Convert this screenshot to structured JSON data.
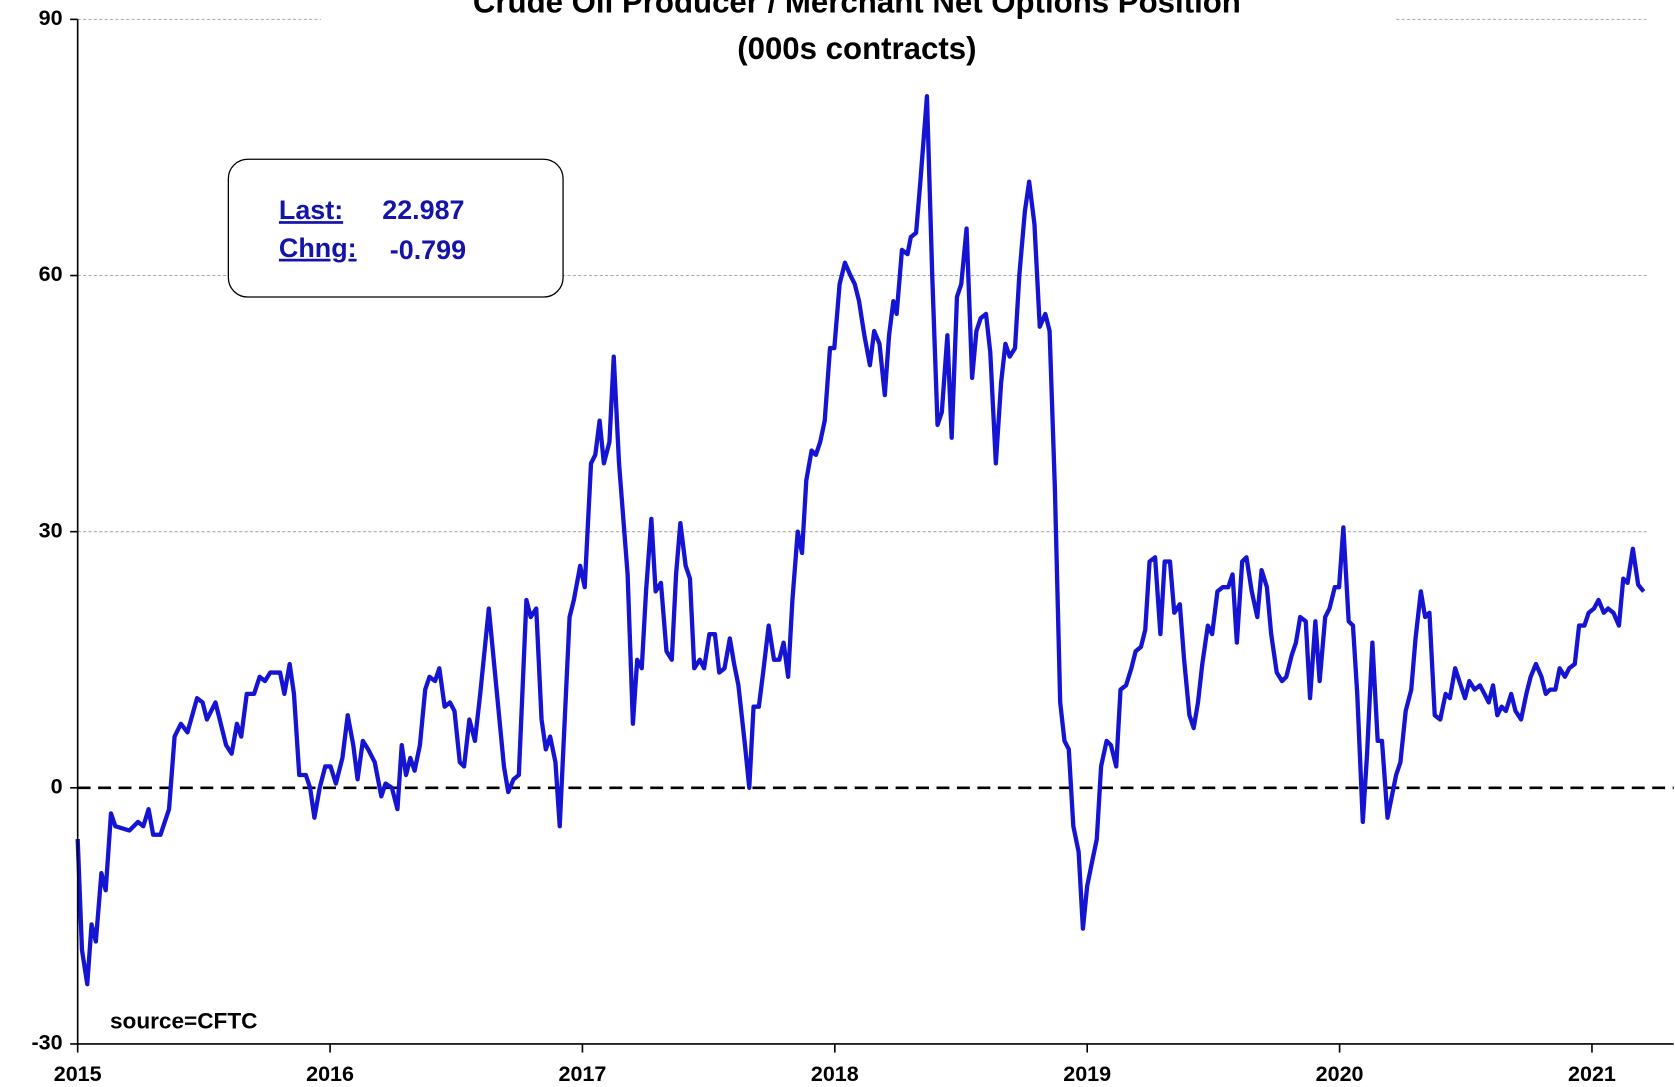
{
  "chart_data": {
    "type": "line",
    "title": "Crude Oil Producer / Merchant Net Options Position",
    "subtitle": "(000s contracts)",
    "annotations": {
      "last_label": "Last:",
      "last_value": "22.987",
      "change_label": "Chng:",
      "change_value": "-0.799",
      "source": "source=CFTC"
    },
    "xlim": [
      2015,
      2021.324
    ],
    "xticks": [
      2015,
      2016,
      2017,
      2018,
      2019,
      2020,
      2021
    ],
    "ylim": [
      -30,
      90
    ],
    "yticks": [
      -30,
      0,
      30,
      60,
      90
    ],
    "grid": true,
    "zero_line": true,
    "x": [
      2015.0,
      2015.017,
      2015.038,
      2015.055,
      2015.072,
      2015.094,
      2015.111,
      2015.132,
      2015.149,
      2015.205,
      2015.239,
      2015.26,
      2015.281,
      2015.299,
      2015.328,
      2015.362,
      2015.384,
      2015.409,
      2015.435,
      2015.473,
      2015.495,
      2015.512,
      2015.546,
      2015.588,
      2015.61,
      2015.631,
      2015.648,
      2015.67,
      2015.699,
      2015.721,
      2015.742,
      2015.763,
      2015.802,
      2015.819,
      2015.84,
      2015.857,
      2015.878,
      2015.904,
      2015.921,
      2015.938,
      2015.959,
      2015.981,
      2016.002,
      2016.023,
      2016.049,
      2016.07,
      2016.092,
      2016.109,
      2016.13,
      2016.151,
      2016.177,
      2016.203,
      2016.22,
      2016.245,
      2016.267,
      2016.284,
      2016.301,
      2016.318,
      2016.335,
      2016.356,
      2016.377,
      2016.394,
      2016.416,
      2016.433,
      2016.454,
      2016.475,
      2016.493,
      2016.514,
      2016.531,
      2016.552,
      2016.574,
      2016.595,
      2016.629,
      2016.663,
      2016.689,
      2016.706,
      2016.727,
      2016.748,
      2016.778,
      2016.795,
      2016.817,
      2016.838,
      2016.855,
      2016.872,
      2016.893,
      2016.91,
      2016.949,
      2016.966,
      2016.991,
      2017.009,
      2017.034,
      2017.051,
      2017.068,
      2017.085,
      2017.107,
      2017.124,
      2017.145,
      2017.179,
      2017.2,
      2017.217,
      2017.235,
      2017.252,
      2017.273,
      2017.29,
      2017.311,
      2017.333,
      2017.354,
      2017.371,
      2017.388,
      2017.409,
      2017.426,
      2017.443,
      2017.465,
      2017.482,
      2017.503,
      2017.525,
      2017.542,
      2017.563,
      2017.584,
      2017.601,
      2017.618,
      2017.644,
      2017.661,
      2017.678,
      2017.699,
      2017.716,
      2017.738,
      2017.759,
      2017.78,
      2017.797,
      2017.815,
      2017.832,
      2017.853,
      2017.87,
      2017.887,
      2017.908,
      2017.925,
      2017.942,
      2017.96,
      2017.981,
      2017.998,
      2018.019,
      2018.04,
      2018.062,
      2018.079,
      2018.096,
      2018.117,
      2018.139,
      2018.156,
      2018.177,
      2018.198,
      2018.215,
      2018.232,
      2018.245,
      2018.266,
      2018.288,
      2018.301,
      2018.322,
      2018.339,
      2018.365,
      2018.386,
      2018.407,
      2018.424,
      2018.446,
      2018.463,
      2018.484,
      2018.501,
      2018.522,
      2018.544,
      2018.561,
      2018.578,
      2018.599,
      2018.616,
      2018.638,
      2018.659,
      2018.676,
      2018.693,
      2018.714,
      2018.731,
      2018.753,
      2018.77,
      2018.791,
      2018.812,
      2018.834,
      2018.851,
      2018.872,
      2018.893,
      2018.91,
      2018.927,
      2018.945,
      2018.966,
      2018.983,
      2019.0,
      2019.017,
      2019.038,
      2019.055,
      2019.077,
      2019.094,
      2019.115,
      2019.132,
      2019.154,
      2019.175,
      2019.192,
      2019.213,
      2019.23,
      2019.247,
      2019.269,
      2019.29,
      2019.307,
      2019.328,
      2019.345,
      2019.367,
      2019.384,
      2019.405,
      2019.422,
      2019.439,
      2019.456,
      2019.478,
      2019.495,
      2019.516,
      2019.537,
      2019.559,
      2019.576,
      2019.593,
      2019.614,
      2019.631,
      2019.652,
      2019.674,
      2019.691,
      2019.712,
      2019.729,
      2019.751,
      2019.772,
      2019.789,
      2019.81,
      2019.827,
      2019.844,
      2019.866,
      2019.883,
      2019.904,
      2019.921,
      2019.943,
      2019.96,
      2019.981,
      2019.998,
      2020.015,
      2020.036,
      2020.053,
      2020.07,
      2020.092,
      2020.109,
      2020.13,
      2020.151,
      2020.168,
      2020.19,
      2020.207,
      2020.224,
      2020.241,
      2020.262,
      2020.284,
      2020.301,
      2020.322,
      2020.339,
      2020.356,
      2020.377,
      2020.399,
      2020.42,
      2020.437,
      2020.458,
      2020.48,
      2020.497,
      2020.514,
      2020.535,
      2020.556,
      2020.574,
      2020.591,
      2020.608,
      2020.625,
      2020.642,
      2020.659,
      2020.68,
      2020.697,
      2020.719,
      2020.74,
      2020.757,
      2020.778,
      2020.8,
      2020.817,
      2020.834,
      2020.855,
      2020.872,
      2020.893,
      2020.91,
      2020.932,
      2020.949,
      2020.97,
      2020.987,
      2021.008,
      2021.026,
      2021.047,
      2021.064,
      2021.085,
      2021.107,
      2021.124,
      2021.141,
      2021.162,
      2021.183,
      2021.205
    ],
    "series": [
      {
        "name": "Net Options Position",
        "color": "#1414d2",
        "values": [
          -6,
          -19,
          -23,
          -16,
          -18,
          -10,
          -12,
          -3,
          -4.5,
          -5,
          -4,
          -4.5,
          -2.5,
          -5.5,
          -5.5,
          -2.5,
          6,
          7.5,
          6.5,
          10.5,
          10,
          8,
          10,
          5,
          4,
          7.5,
          6,
          11,
          11,
          13,
          12.5,
          13.5,
          13.5,
          11,
          14.5,
          11,
          1.5,
          1.5,
          0,
          -3.5,
          0,
          2.5,
          2.5,
          0.5,
          3.5,
          8.5,
          5,
          1,
          5.5,
          4.5,
          3,
          -1,
          0.5,
          0,
          -2.5,
          5,
          1.5,
          3.5,
          2,
          5,
          11.5,
          13,
          12.5,
          14,
          9.5,
          10,
          9,
          3,
          2.5,
          8,
          5.5,
          11,
          21,
          10.5,
          2.5,
          -0.5,
          1,
          1.5,
          22,
          20,
          21,
          8,
          4.5,
          6,
          3,
          -4.5,
          20,
          22,
          26,
          23.5,
          38,
          39,
          43,
          38,
          40.5,
          50.5,
          38,
          25,
          7.5,
          15,
          14,
          23,
          31.5,
          23,
          24,
          16,
          15,
          25,
          31,
          26,
          24.5,
          14,
          15,
          14,
          18,
          18,
          13.5,
          14,
          17.5,
          14.5,
          12,
          5,
          0,
          9.5,
          9.5,
          13.5,
          19,
          15,
          15,
          17,
          13,
          22,
          30,
          27.5,
          36,
          39.5,
          39,
          40.5,
          43,
          51.5,
          51.5,
          59,
          61.5,
          60,
          59,
          57,
          53,
          49.5,
          53.5,
          52,
          46,
          53,
          57,
          55.5,
          63,
          62.5,
          64.5,
          65,
          71,
          81,
          60,
          42.5,
          44,
          53,
          41,
          57.5,
          59,
          65.5,
          48,
          53.5,
          55,
          55.5,
          51,
          38,
          47.5,
          52,
          50.5,
          51.5,
          60,
          67.5,
          71,
          66,
          54,
          55.5,
          53.5,
          35,
          10,
          5.5,
          4.5,
          -4.5,
          -7.5,
          -16.5,
          -11.5,
          -9,
          -6,
          2.5,
          5.5,
          5,
          2.5,
          11.5,
          12,
          14,
          16,
          16.5,
          18.5,
          26.5,
          27,
          18,
          26.5,
          26.5,
          20.5,
          21.5,
          15,
          8.5,
          7,
          10,
          14.5,
          19,
          18,
          23,
          23.5,
          23.5,
          25,
          17,
          26.5,
          27,
          23,
          20,
          25.5,
          23.5,
          18,
          13.5,
          12.5,
          13,
          15.5,
          17,
          20,
          19.5,
          10.5,
          19.5,
          12.5,
          20,
          21,
          23.5,
          23.5,
          30.5,
          19.5,
          19,
          11,
          -4,
          4,
          17,
          5.5,
          5.5,
          -3.5,
          -1,
          1.5,
          3,
          9,
          11.5,
          17.5,
          23,
          20,
          20.5,
          8.5,
          8,
          11,
          10.5,
          14,
          12,
          10.5,
          12.5,
          11.5,
          12,
          11,
          10,
          12,
          8.5,
          9.5,
          9,
          11,
          9,
          8,
          11,
          13,
          14.5,
          13,
          11,
          11.5,
          11.5,
          14,
          13,
          14,
          14.5,
          19,
          19,
          20.5,
          21,
          22,
          20.5,
          21,
          20.5,
          19,
          24.5,
          24,
          28,
          23.786,
          22.987
        ]
      }
    ]
  }
}
